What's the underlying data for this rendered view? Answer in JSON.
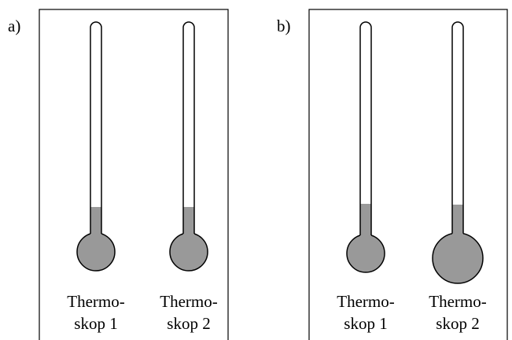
{
  "panels": [
    {
      "label": "a)",
      "thermoscopes": [
        {
          "label_lines": [
            "Thermo-",
            "skop 1"
          ]
        },
        {
          "label_lines": [
            "Thermo-",
            "skop 2"
          ]
        }
      ]
    },
    {
      "label": "b)",
      "thermoscopes": [
        {
          "label_lines": [
            "Thermo-",
            "skop 1"
          ]
        },
        {
          "label_lines": [
            "Thermo-",
            "skop 2"
          ]
        }
      ]
    }
  ]
}
